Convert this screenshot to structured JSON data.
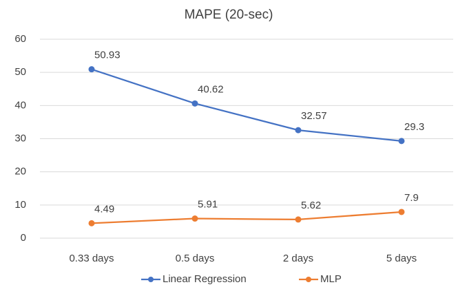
{
  "chart_data": {
    "type": "line",
    "title": "MAPE (20-sec)",
    "categories": [
      "0.33 days",
      "0.5 days",
      "2 days",
      "5 days"
    ],
    "series": [
      {
        "name": "Linear Regression",
        "color": "#4472c4",
        "values": [
          50.93,
          40.62,
          32.57,
          29.3
        ]
      },
      {
        "name": "MLP",
        "color": "#ed7d31",
        "values": [
          4.49,
          5.91,
          5.62,
          7.9
        ]
      }
    ],
    "ylim": [
      0,
      60
    ],
    "yticks": [
      0,
      10,
      20,
      30,
      40,
      50,
      60
    ],
    "grid": true,
    "legend": "bottom"
  }
}
